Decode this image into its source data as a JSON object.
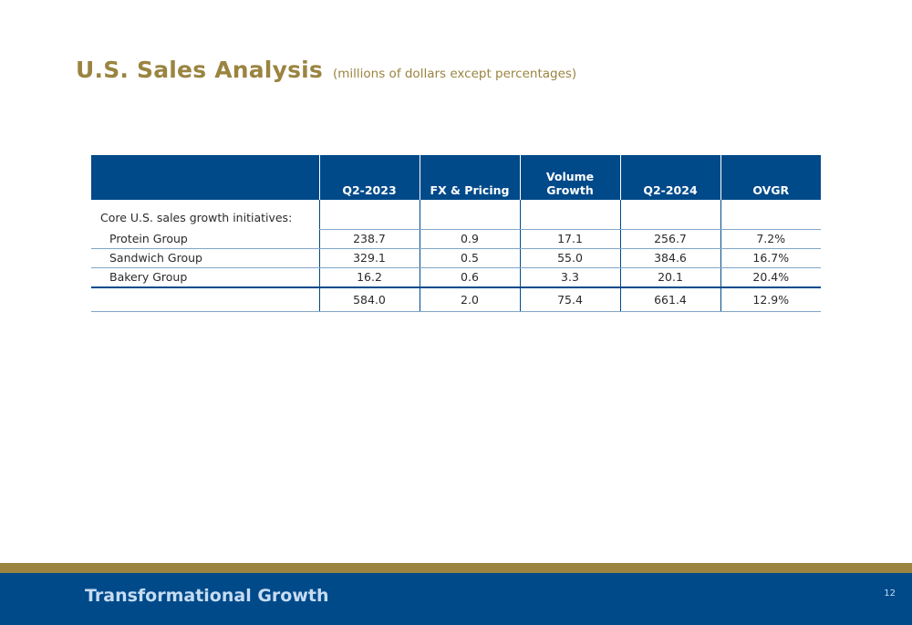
{
  "header": {
    "title": "U.S. Sales Analysis",
    "subtitle": "(millions of dollars except percentages)"
  },
  "table": {
    "columns": [
      "",
      "Q2-2023",
      "FX & Pricing",
      "Volume Growth",
      "Q2-2024",
      "OVGR"
    ],
    "intro_label": "Core U.S. sales growth initiatives:",
    "rows": [
      {
        "label": "Protein Group",
        "values": [
          "238.7",
          "0.9",
          "17.1",
          "256.7",
          "7.2%"
        ]
      },
      {
        "label": "Sandwich Group",
        "values": [
          "329.1",
          "0.5",
          "55.0",
          "384.6",
          "16.7%"
        ]
      },
      {
        "label": "Bakery Group",
        "values": [
          "16.2",
          "0.6",
          "3.3",
          "20.1",
          "20.4%"
        ]
      }
    ],
    "total": {
      "label": "",
      "values": [
        "584.0",
        "2.0",
        "75.4",
        "661.4",
        "12.9%"
      ]
    }
  },
  "footer": {
    "title": "Transformational Growth",
    "page_number": "12"
  },
  "colors": {
    "brand_blue": "#004a8a",
    "brand_gold": "#9a8440"
  }
}
